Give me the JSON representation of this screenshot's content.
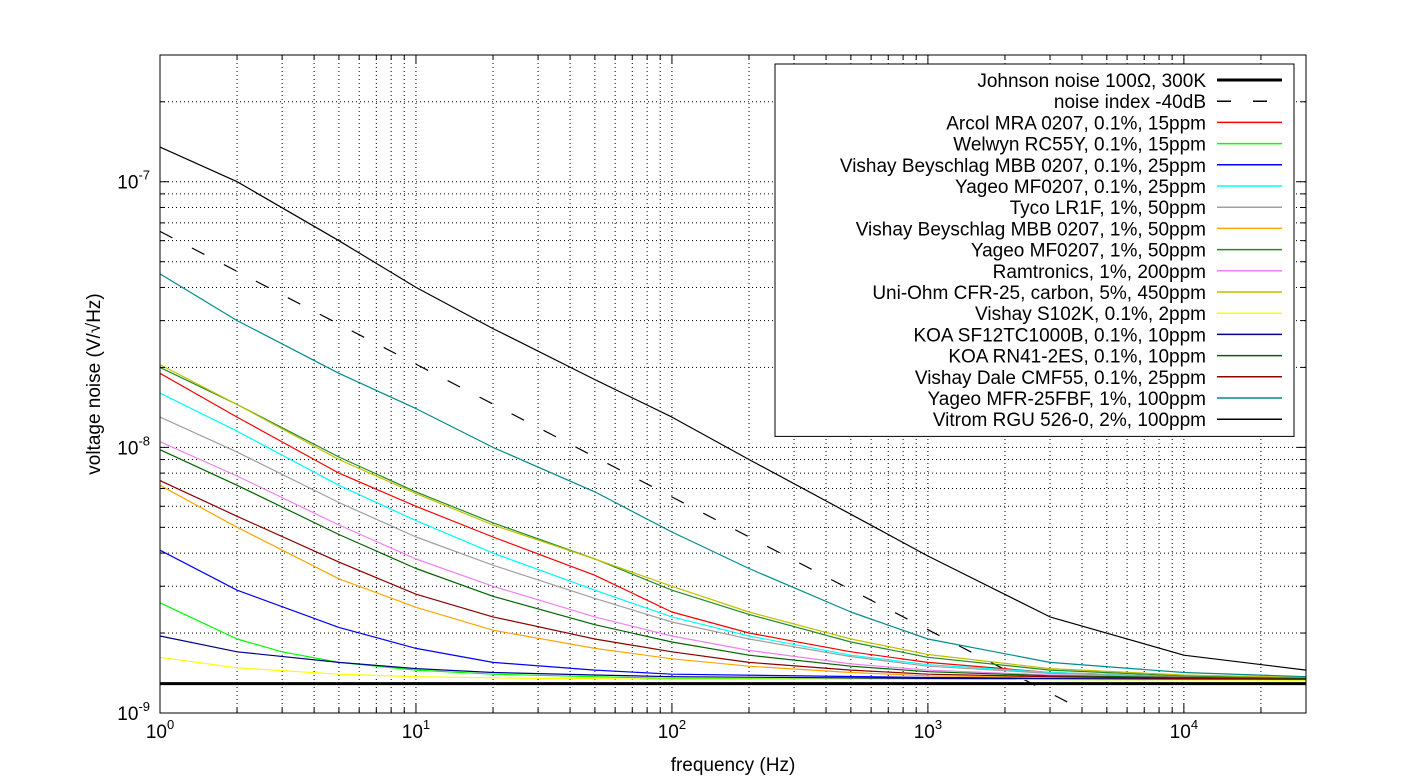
{
  "chart_data": {
    "type": "line",
    "title": "",
    "xlabel": "frequency (Hz)",
    "ylabel": "voltage noise (V/√Hz)",
    "xscale": "log",
    "yscale": "log",
    "xlim": [
      1,
      30000
    ],
    "ylim": [
      1e-09,
      3e-07
    ],
    "grid": true,
    "legend_position": "top-right",
    "x_ticks": [
      {
        "value": 1,
        "base": "10",
        "exp": "0"
      },
      {
        "value": 10,
        "base": "10",
        "exp": "1"
      },
      {
        "value": 100,
        "base": "10",
        "exp": "2"
      },
      {
        "value": 1000,
        "base": "10",
        "exp": "3"
      },
      {
        "value": 10000,
        "base": "10",
        "exp": "4"
      }
    ],
    "y_ticks": [
      {
        "value": 1e-09,
        "base": "10",
        "exp": "-9"
      },
      {
        "value": 1e-08,
        "base": "10",
        "exp": "-8"
      },
      {
        "value": 1e-07,
        "base": "10",
        "exp": "-7"
      }
    ],
    "series": [
      {
        "name": "Johnson noise 100Ω, 300K",
        "color": "#000000",
        "style": "thick",
        "x": [
          1,
          30000
        ],
        "y": [
          1.29e-09,
          1.29e-09
        ]
      },
      {
        "name": "noise index -40dB",
        "color": "#000000",
        "style": "dashed",
        "x": [
          1,
          4000
        ],
        "y": [
          6.5e-08,
          1.03e-09
        ]
      },
      {
        "name": "Arcol MRA 0207, 0.1%, 15ppm",
        "color": "#ff0000",
        "x": [
          1,
          2,
          5,
          10,
          20,
          50,
          100,
          200,
          500,
          1000,
          3000,
          10000,
          30000
        ],
        "y": [
          1.9e-08,
          1.3e-08,
          8e-09,
          6e-09,
          4.6e-09,
          3.3e-09,
          2.4e-09,
          2e-09,
          1.7e-09,
          1.55e-09,
          1.42e-09,
          1.37e-09,
          1.35e-09
        ]
      },
      {
        "name": "Welwyn RC55Y, 0.1%, 15ppm",
        "color": "#00ff00",
        "x": [
          1,
          2,
          3,
          5,
          10,
          20,
          50,
          100,
          1000,
          30000
        ],
        "y": [
          2.6e-09,
          1.9e-09,
          1.7e-09,
          1.55e-09,
          1.45e-09,
          1.4e-09,
          1.37e-09,
          1.35e-09,
          1.34e-09,
          1.33e-09
        ]
      },
      {
        "name": "Vishay Beyschlag MBB 0207, 0.1%, 25ppm",
        "color": "#0000ff",
        "x": [
          1,
          2,
          5,
          10,
          20,
          50,
          100,
          1000,
          30000
        ],
        "y": [
          4.1e-09,
          2.9e-09,
          2.1e-09,
          1.75e-09,
          1.55e-09,
          1.45e-09,
          1.4e-09,
          1.36e-09,
          1.34e-09
        ]
      },
      {
        "name": "Yageo MF0207, 0.1%, 25ppm",
        "color": "#00ffff",
        "x": [
          1,
          2,
          5,
          10,
          20,
          50,
          100,
          200,
          500,
          1000,
          3000,
          10000,
          30000
        ],
        "y": [
          1.6e-08,
          1.15e-08,
          7.2e-09,
          5.3e-09,
          4e-09,
          2.9e-09,
          2.3e-09,
          1.95e-09,
          1.65e-09,
          1.52e-09,
          1.42e-09,
          1.37e-09,
          1.35e-09
        ]
      },
      {
        "name": "Tyco LR1F, 1%, 50ppm",
        "color": "#a0a0a0",
        "x": [
          1,
          2,
          5,
          10,
          20,
          50,
          100,
          200,
          500,
          1000,
          3000,
          10000,
          30000
        ],
        "y": [
          1.3e-08,
          9.6e-09,
          6.2e-09,
          4.6e-09,
          3.6e-09,
          2.7e-09,
          2.2e-09,
          1.9e-09,
          1.63e-09,
          1.5e-09,
          1.41e-09,
          1.37e-09,
          1.35e-09
        ]
      },
      {
        "name": "Vishay Beyschlag MBB 0207, 1%, 50ppm",
        "color": "#ffa500",
        "x": [
          1,
          2,
          5,
          10,
          20,
          50,
          100,
          200,
          500,
          1000,
          3000,
          10000,
          30000
        ],
        "y": [
          7.2e-09,
          5e-09,
          3.2e-09,
          2.5e-09,
          2.05e-09,
          1.75e-09,
          1.6e-09,
          1.5e-09,
          1.42e-09,
          1.38e-09,
          1.36e-09,
          1.35e-09,
          1.34e-09
        ]
      },
      {
        "name": "Yageo MF0207, 1%, 50ppm",
        "color": "#228b22",
        "x": [
          1,
          2,
          5,
          10,
          20,
          50,
          100,
          200,
          500,
          1000,
          3000,
          10000,
          30000
        ],
        "y": [
          2e-08,
          1.45e-08,
          9.2e-09,
          6.8e-09,
          5.2e-09,
          3.8e-09,
          2.9e-09,
          2.35e-09,
          1.85e-09,
          1.62e-09,
          1.45e-09,
          1.38e-09,
          1.35e-09
        ]
      },
      {
        "name": "Ramtronics, 1%, 200ppm",
        "color": "#ee82ee",
        "x": [
          1,
          2,
          5,
          10,
          20,
          50,
          100,
          200,
          500,
          1000,
          3000,
          10000,
          30000
        ],
        "y": [
          1.05e-08,
          7.8e-09,
          5.1e-09,
          3.8e-09,
          3e-09,
          2.3e-09,
          1.95e-09,
          1.72e-09,
          1.53e-09,
          1.45e-09,
          1.39e-09,
          1.36e-09,
          1.35e-09
        ]
      },
      {
        "name": "Uni-Ohm CFR-25, carbon, 5%, 450ppm",
        "color": "#c0c000",
        "x": [
          1,
          2,
          5,
          10,
          20,
          50,
          100,
          200,
          500,
          1000,
          3000,
          10000,
          30000
        ],
        "y": [
          2.05e-08,
          1.45e-08,
          9e-09,
          6.7e-09,
          5.1e-09,
          3.8e-09,
          3e-09,
          2.4e-09,
          1.9e-09,
          1.66e-09,
          1.47e-09,
          1.39e-09,
          1.36e-09
        ]
      },
      {
        "name": "Vishay S102K, 0.1%, 2ppm",
        "color": "#ffff00",
        "x": [
          1,
          2,
          5,
          10,
          30,
          100,
          1000,
          30000
        ],
        "y": [
          1.62e-09,
          1.48e-09,
          1.4e-09,
          1.37e-09,
          1.35e-09,
          1.34e-09,
          1.34e-09,
          1.33e-09
        ]
      },
      {
        "name": "KOA SF12TC1000B, 0.1%, 10ppm",
        "color": "#00008b",
        "x": [
          1,
          2,
          5,
          10,
          20,
          50,
          100,
          1000,
          30000
        ],
        "y": [
          1.95e-09,
          1.7e-09,
          1.55e-09,
          1.47e-09,
          1.42e-09,
          1.39e-09,
          1.37e-09,
          1.35e-09,
          1.34e-09
        ]
      },
      {
        "name": "KOA RN41-2ES, 0.1%, 10ppm",
        "color": "#006400",
        "x": [
          1,
          2,
          5,
          10,
          20,
          50,
          100,
          200,
          500,
          1000,
          3000,
          10000,
          30000
        ],
        "y": [
          9.8e-09,
          7.2e-09,
          4.7e-09,
          3.5e-09,
          2.75e-09,
          2.15e-09,
          1.85e-09,
          1.65e-09,
          1.5e-09,
          1.43e-09,
          1.38e-09,
          1.36e-09,
          1.35e-09
        ]
      },
      {
        "name": "Vishay Dale CMF55, 0.1%, 25ppm",
        "color": "#8b0000",
        "x": [
          1,
          2,
          5,
          10,
          20,
          50,
          100,
          200,
          500,
          1000,
          3000,
          10000,
          30000
        ],
        "y": [
          7.5e-09,
          5.5e-09,
          3.7e-09,
          2.8e-09,
          2.3e-09,
          1.9e-09,
          1.7e-09,
          1.55e-09,
          1.45e-09,
          1.4e-09,
          1.37e-09,
          1.35e-09,
          1.34e-09
        ]
      },
      {
        "name": "Yageo MFR-25FBF, 1%, 100ppm",
        "color": "#008b8b",
        "x": [
          1,
          2,
          5,
          10,
          20,
          50,
          100,
          200,
          500,
          1000,
          3000,
          10000,
          30000
        ],
        "y": [
          4.5e-08,
          3e-08,
          1.9e-08,
          1.4e-08,
          1e-08,
          6.8e-09,
          4.8e-09,
          3.5e-09,
          2.4e-09,
          1.9e-09,
          1.55e-09,
          1.42e-09,
          1.37e-09
        ]
      },
      {
        "name": "Vitrom RGU 526-0, 2%, 100ppm",
        "color": "#000000",
        "x": [
          1,
          2,
          5,
          10,
          20,
          50,
          100,
          200,
          500,
          1000,
          3000,
          10000,
          30000
        ],
        "y": [
          1.35e-07,
          1e-07,
          6e-08,
          4e-08,
          2.8e-08,
          1.8e-08,
          1.3e-08,
          9e-09,
          5.6e-09,
          3.9e-09,
          2.3e-09,
          1.65e-09,
          1.45e-09
        ]
      }
    ]
  }
}
